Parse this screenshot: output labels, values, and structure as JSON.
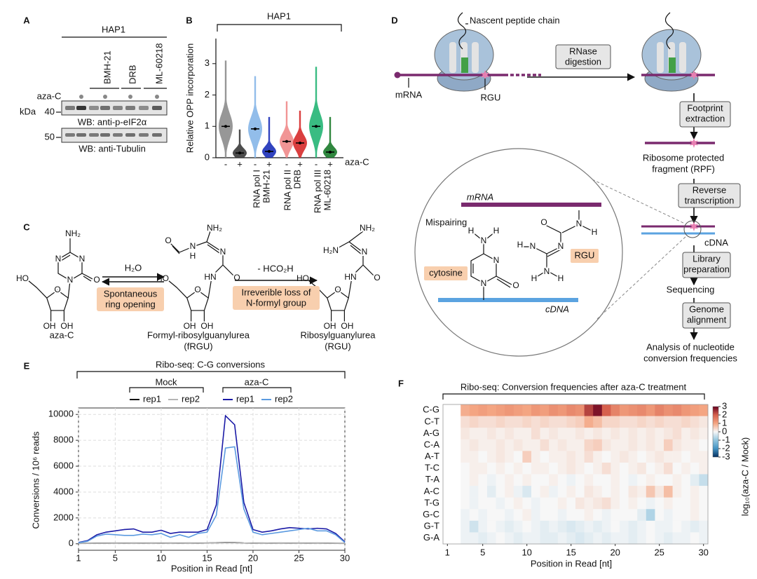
{
  "panel_labels": [
    "A",
    "B",
    "C",
    "D",
    "E",
    "F"
  ],
  "blot": {
    "cell_line": "HAP1",
    "lanes": [
      "BMH-21",
      "DRB",
      "ML-60218"
    ],
    "treatment": "aza-C",
    "marker_unit": "kDa",
    "markers": [
      40,
      50
    ],
    "antibodies": [
      "WB: anti-p-eIF2α",
      "WB: anti-Tubulin"
    ]
  },
  "chemistry": {
    "compounds": [
      {
        "name": [
          "aza-C"
        ],
        "atoms": [
          "NH₂",
          "N",
          "N",
          "N",
          "O",
          "HO",
          "O",
          "OH",
          "OH"
        ]
      },
      {
        "name": [
          "Formyl-ribosylguanylurea",
          "(fRGU)"
        ],
        "atoms": [
          "O",
          "N",
          "H",
          "NH₂",
          "N",
          "O",
          "HN",
          "HO",
          "O",
          "OH",
          "OH"
        ]
      },
      {
        "name": [
          "Ribosylguanylurea",
          "(RGU)"
        ],
        "atoms": [
          "NH₂",
          "H₂N",
          "N",
          "O",
          "HN",
          "HO",
          "O",
          "OH",
          "OH"
        ]
      }
    ],
    "steps": [
      {
        "reagent": "H₂O",
        "label": [
          "Spontaneous",
          "ring opening"
        ]
      },
      {
        "reagent": "- HCO₂H",
        "label": [
          "Irreverible loss of",
          "N-formyl group"
        ]
      }
    ]
  },
  "scheme": {
    "peptide": "Nascent peptide chain",
    "mrna": "mRNA",
    "rgu": "RGU",
    "steps": [
      [
        "RNase",
        "digestion"
      ],
      [
        "Footprint",
        "extraction"
      ],
      [
        "Reverse",
        "transcription"
      ],
      [
        "Library",
        "preparation"
      ],
      [
        "Genome",
        "alignment"
      ]
    ],
    "rpf": [
      "Ribosome protected",
      "fragment (RPF)"
    ],
    "cdna": "cDNA",
    "sequencing": "Sequencing",
    "result": [
      "Analysis of nucleotide",
      "conversion frequencies"
    ],
    "inset": {
      "mrna": "mRNA",
      "cdna": "cDNA",
      "mispairing": "Mispairing",
      "cytosine": "cytosine",
      "rgu": "RGU",
      "cytosine_atoms": [
        "H",
        "N",
        "H",
        "N",
        "N",
        "O"
      ],
      "rgu_atoms": [
        "H",
        "N",
        "N",
        "N",
        "H",
        "H",
        "O",
        "N",
        "H"
      ]
    }
  },
  "chart_data": [
    {
      "type": "violin",
      "title": "HAP1",
      "ylabel": "Relative OPP incorporation",
      "categories": [
        "-",
        "+",
        "-",
        "+",
        "-",
        "+",
        "-",
        "+"
      ],
      "group_labels": [
        [
          "RNA pol I",
          "BMH-21"
        ],
        [
          "RNA pol II",
          "DRB"
        ],
        [
          "RNA pol III",
          "ML-60218"
        ]
      ],
      "treatment_label": "aza-C",
      "medians": [
        1.0,
        0.15,
        0.92,
        0.2,
        0.52,
        0.47,
        1.0,
        0.18
      ],
      "maxima": [
        3.1,
        0.9,
        2.6,
        1.3,
        1.8,
        1.5,
        2.9,
        1.3
      ],
      "colors": [
        "#8c8c8c",
        "#3a3a3a",
        "#86b6e8",
        "#1b2fb8",
        "#f08a8a",
        "#d62a2a",
        "#23b574",
        "#1a7a2a"
      ],
      "ylim": [
        0,
        3.8
      ],
      "yticks": [
        0,
        1,
        2,
        3
      ]
    },
    {
      "type": "line",
      "title": "Ribo-seq: C-G conversions",
      "xlabel": "Position in Read [nt]",
      "ylabel": "Conversions / 10⁶ reads",
      "x": [
        1,
        2,
        3,
        4,
        5,
        6,
        7,
        8,
        9,
        10,
        11,
        12,
        13,
        14,
        15,
        16,
        17,
        18,
        19,
        20,
        21,
        22,
        23,
        24,
        25,
        26,
        27,
        28,
        29,
        30
      ],
      "groups": [
        {
          "name": "Mock",
          "series": [
            {
              "name": "rep1",
              "color": "#111111",
              "values": [
                30,
                40,
                50,
                50,
                60,
                50,
                60,
                50,
                60,
                50,
                60,
                50,
                60,
                50,
                60,
                70,
                100,
                90,
                60,
                50,
                60,
                50,
                60,
                50,
                60,
                50,
                60,
                50,
                40,
                30
              ]
            },
            {
              "name": "rep2",
              "color": "#b5b5b5",
              "values": [
                20,
                30,
                40,
                40,
                50,
                40,
                50,
                40,
                50,
                40,
                50,
                40,
                50,
                40,
                50,
                60,
                80,
                70,
                50,
                40,
                50,
                40,
                50,
                40,
                50,
                40,
                50,
                40,
                30,
                20
              ]
            }
          ]
        },
        {
          "name": "aza-C",
          "series": [
            {
              "name": "rep1",
              "color": "#1a1aa6",
              "values": [
                100,
                250,
                700,
                900,
                1000,
                1100,
                1150,
                900,
                900,
                1050,
                800,
                900,
                900,
                900,
                1100,
                3000,
                9900,
                9200,
                3200,
                1100,
                900,
                1000,
                1150,
                1250,
                1200,
                1150,
                1200,
                1150,
                800,
                150
              ]
            },
            {
              "name": "rep2",
              "color": "#5b9ae0",
              "values": [
                80,
                200,
                600,
                750,
                700,
                650,
                650,
                750,
                700,
                800,
                500,
                700,
                500,
                800,
                900,
                2200,
                7400,
                7500,
                2700,
                900,
                700,
                800,
                900,
                1000,
                1100,
                1200,
                1000,
                1000,
                700,
                100
              ]
            }
          ]
        }
      ],
      "xlim": [
        1,
        30
      ],
      "xticks": [
        1,
        5,
        10,
        15,
        20,
        25,
        30
      ],
      "ylim": [
        -500,
        10500
      ],
      "yticks": [
        0,
        2000,
        4000,
        6000,
        8000,
        10000
      ],
      "grid": true
    },
    {
      "type": "heatmap",
      "title": "Ribo-seq: Conversion frequencies after aza-C treatment",
      "xlabel": "Position in Read [nt]",
      "x": [
        1,
        2,
        3,
        4,
        5,
        6,
        7,
        8,
        9,
        10,
        11,
        12,
        13,
        14,
        15,
        16,
        17,
        18,
        19,
        20,
        21,
        22,
        23,
        24,
        25,
        26,
        27,
        28,
        29,
        30
      ],
      "rows": [
        "C-G",
        "C-T",
        "A-G",
        "C-A",
        "A-T",
        "T-C",
        "T-A",
        "A-C",
        "T-G",
        "G-C",
        "G-T",
        "G-A"
      ],
      "values": [
        [
          null,
          null,
          0.9,
          1.0,
          1.1,
          1.0,
          1.1,
          1.2,
          1.1,
          1.0,
          1.2,
          1.1,
          1.3,
          1.2,
          1.4,
          1.3,
          2.3,
          2.8,
          2.0,
          1.5,
          1.2,
          1.3,
          1.4,
          1.2,
          1.5,
          1.3,
          1.4,
          1.2,
          1.1,
          1.0
        ],
        [
          null,
          null,
          0.3,
          0.4,
          0.3,
          0.3,
          0.4,
          0.3,
          0.3,
          0.4,
          0.3,
          0.4,
          0.3,
          0.3,
          0.4,
          0.5,
          0.9,
          0.7,
          0.4,
          0.4,
          0.3,
          0.3,
          0.4,
          0.3,
          0.4,
          0.3,
          0.3,
          0.4,
          0.3,
          0.2
        ],
        [
          null,
          null,
          0.2,
          0.1,
          0.1,
          0.2,
          0.1,
          0.2,
          0.1,
          0.1,
          0.3,
          0.1,
          0.2,
          0.1,
          0.1,
          0.2,
          0.1,
          0.2,
          0.1,
          0.2,
          0.1,
          0.2,
          0.1,
          0.2,
          0.1,
          0.2,
          0.3,
          0.1,
          0.2,
          0.1
        ],
        [
          null,
          null,
          0.1,
          0.2,
          0.1,
          0.1,
          0.2,
          0.1,
          0.2,
          0.1,
          0.1,
          0.3,
          0.1,
          0.2,
          0.1,
          0.1,
          0.4,
          0.5,
          0.2,
          0.1,
          0.1,
          0.2,
          0.1,
          0.2,
          0.1,
          0.5,
          0.2,
          0.1,
          0.1,
          0.0
        ],
        [
          null,
          null,
          0.1,
          0.1,
          0.0,
          0.1,
          0.2,
          0.1,
          0.0,
          0.5,
          0.1,
          0.0,
          0.1,
          0.1,
          0.2,
          0.1,
          0.3,
          0.1,
          0.0,
          0.1,
          0.2,
          0.1,
          0.0,
          0.1,
          0.2,
          0.1,
          0.1,
          0.0,
          0.1,
          0.1
        ],
        [
          null,
          null,
          0.0,
          0.1,
          0.1,
          0.0,
          0.1,
          0.0,
          0.1,
          0.0,
          0.1,
          0.1,
          0.0,
          0.1,
          0.2,
          0.1,
          0.0,
          0.1,
          0.3,
          0.1,
          0.0,
          0.1,
          0.2,
          0.0,
          0.1,
          0.3,
          0.0,
          0.1,
          0.0,
          0.1
        ],
        [
          null,
          null,
          0.0,
          0.1,
          0.0,
          -0.1,
          0.0,
          0.1,
          0.0,
          0.1,
          0.0,
          0.0,
          0.1,
          0.0,
          -0.1,
          0.0,
          0.1,
          0.0,
          0.0,
          0.1,
          0.0,
          -0.1,
          0.0,
          0.1,
          0.0,
          0.0,
          0.1,
          0.0,
          -0.2,
          -0.5
        ],
        [
          null,
          null,
          0.0,
          -0.1,
          0.0,
          -0.2,
          0.0,
          0.1,
          -0.1,
          -0.3,
          0.0,
          0.1,
          -0.1,
          0.0,
          0.1,
          0.0,
          0.2,
          0.1,
          0.0,
          0.1,
          0.0,
          0.2,
          0.1,
          0.6,
          0.2,
          0.7,
          0.1,
          0.0,
          0.1,
          0.0
        ],
        [
          null,
          null,
          0.0,
          -0.1,
          0.0,
          0.0,
          -0.1,
          0.0,
          0.1,
          0.0,
          -0.1,
          0.0,
          0.0,
          0.1,
          0.0,
          0.2,
          0.1,
          0.2,
          0.3,
          0.1,
          0.0,
          0.1,
          0.0,
          -0.1,
          0.0,
          0.1,
          0.0,
          0.0,
          0.1,
          0.0
        ],
        [
          null,
          null,
          -0.1,
          0.0,
          -0.1,
          0.0,
          0.0,
          -0.1,
          0.0,
          0.1,
          -0.1,
          0.0,
          0.0,
          -0.1,
          0.0,
          0.0,
          0.1,
          0.0,
          -0.1,
          0.0,
          0.0,
          0.0,
          -0.2,
          -0.7,
          0.0,
          -0.1,
          0.0,
          0.0,
          0.1,
          0.0
        ],
        [
          null,
          null,
          -0.1,
          -0.4,
          -0.1,
          0.0,
          -0.1,
          -0.2,
          -0.1,
          0.0,
          -0.1,
          -0.2,
          -0.1,
          -0.2,
          -0.3,
          -0.2,
          -0.1,
          -0.2,
          -0.1,
          0.0,
          -0.1,
          -0.2,
          -0.1,
          0.0,
          -0.1,
          -0.1,
          0.0,
          -0.1,
          -0.2,
          -0.1
        ],
        [
          null,
          null,
          -0.1,
          -0.1,
          -0.2,
          -0.1,
          0.0,
          -0.1,
          -0.2,
          -0.1,
          -0.1,
          -0.2,
          -0.2,
          -0.1,
          -0.2,
          -0.3,
          -0.2,
          -0.1,
          -0.2,
          -0.1,
          -0.1,
          -0.2,
          -0.1,
          0.0,
          -0.1,
          -0.2,
          -0.1,
          -0.1,
          0.0,
          -0.1
        ]
      ],
      "xlim": [
        0.5,
        30.5
      ],
      "xticks": [
        1,
        5,
        10,
        15,
        20,
        25,
        30
      ],
      "clim": [
        -3,
        3
      ],
      "cticks": [
        3,
        2,
        1,
        0,
        -1,
        -2,
        -3
      ],
      "clabel": "log₁₀(aza-C / Mock)"
    }
  ]
}
